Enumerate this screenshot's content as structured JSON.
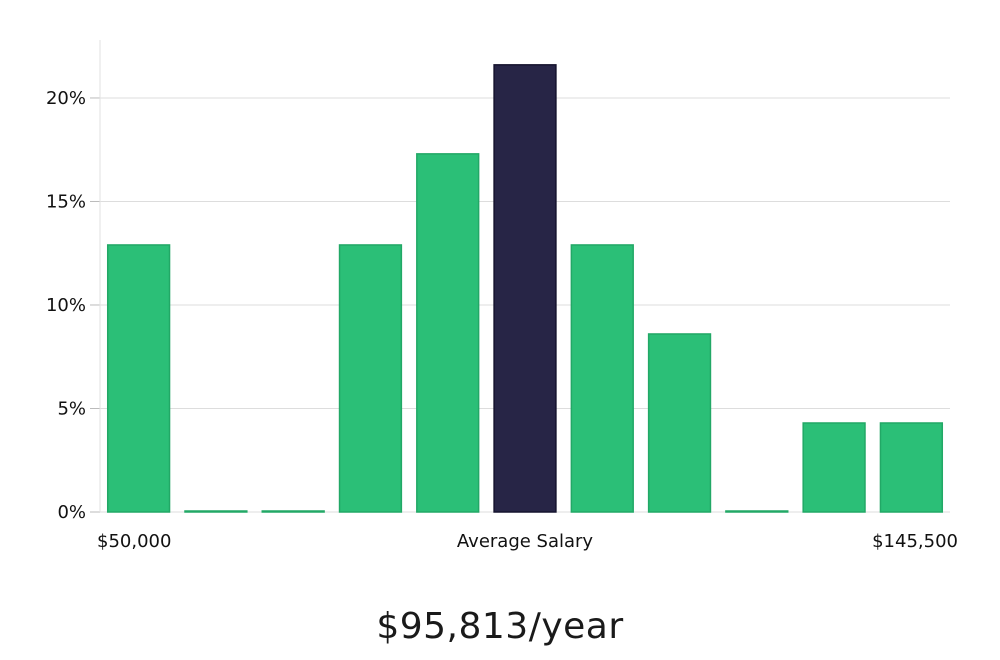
{
  "chart_data": {
    "type": "bar",
    "categories": [
      "1",
      "2",
      "3",
      "4",
      "5",
      "6",
      "7",
      "8",
      "9",
      "10",
      "11"
    ],
    "values": [
      12.9,
      0,
      0,
      12.9,
      17.3,
      21.6,
      12.9,
      8.6,
      0,
      4.3,
      4.3
    ],
    "highlight_index": 5,
    "ylim": [
      0,
      22.8
    ],
    "yticks": [
      0,
      5,
      10,
      15,
      20
    ],
    "ytick_labels": [
      "0%",
      "5%",
      "10%",
      "15%",
      "20%"
    ],
    "x_labels": {
      "left": "$50,000",
      "center": "Average Salary",
      "right": "$145,500"
    },
    "grid": true,
    "colors": {
      "bar": "#2bbf77",
      "bar_edge": "#22a866",
      "highlight": "#272546",
      "highlight_edge": "#15132e",
      "grid": "#dddddd",
      "axis": "#bbbbbb"
    }
  },
  "salary_text": "$95,813/year"
}
